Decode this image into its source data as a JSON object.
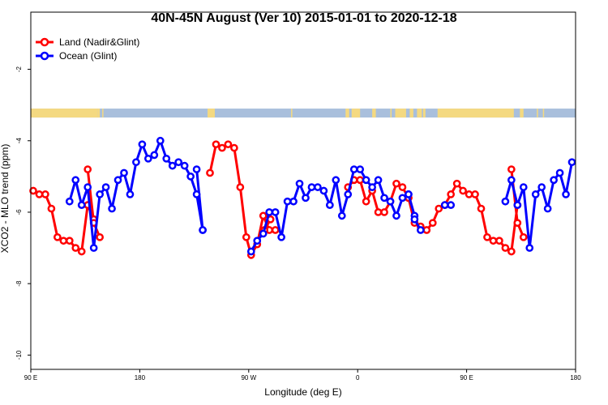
{
  "chart_data": {
    "type": "line",
    "title": "40N-45N August (Ver 10)   2015-01-01 to 2020-12-18",
    "xlabel": "Longitude (deg E)",
    "ylabel": "XCO2 - MLO trend (ppm)",
    "x_ticks": [
      {
        "value": 90,
        "label": "90 E"
      },
      {
        "value": 180,
        "label": "180"
      },
      {
        "value": 270,
        "label": "90 W"
      },
      {
        "value": 360,
        "label": "0"
      },
      {
        "value": 450,
        "label": "90 E"
      },
      {
        "value": 540,
        "label": "180"
      }
    ],
    "y_ticks": [
      -2,
      -4,
      -6,
      -8,
      -10
    ],
    "xlim": [
      90,
      540
    ],
    "ylim": [
      -10.4,
      -0.4
    ],
    "legend_position": "top-left",
    "band": {
      "y_range": [
        -3.1,
        -3.35
      ],
      "ocean_color": "#a9bfdc",
      "land_color": "#f4d981",
      "land_segments_x": [
        [
          90,
          145
        ],
        [
          145,
          147
        ],
        [
          149,
          150
        ],
        [
          236,
          242
        ],
        [
          305,
          306
        ],
        [
          350,
          353
        ],
        [
          355,
          362
        ],
        [
          372,
          375
        ],
        [
          387,
          388
        ],
        [
          391,
          400
        ],
        [
          403,
          406
        ],
        [
          409,
          413
        ],
        [
          414,
          416
        ],
        [
          426,
          489
        ],
        [
          494,
          497
        ],
        [
          508,
          509
        ],
        [
          513,
          514
        ]
      ]
    },
    "series": [
      {
        "name": "Land (Nadir&Glint)",
        "color": "#ff0000",
        "segments": [
          {
            "x": [
              92,
              97,
              102,
              107,
              112,
              117,
              122,
              127,
              132,
              137,
              142
            ],
            "y": [
              -5.4,
              -5.5,
              -5.5,
              -5.9,
              -6.7,
              -6.8,
              -6.8,
              -7.0,
              -7.1,
              -5.8,
              -6.2
            ]
          },
          {
            "x": [
              137,
              142,
              147
            ],
            "y": [
              -4.8,
              -6.3,
              -6.7
            ]
          },
          {
            "x": [
              238,
              243,
              248,
              253,
              258,
              263,
              268,
              272,
              277,
              282,
              287,
              292
            ],
            "y": [
              -4.9,
              -4.1,
              -4.2,
              -4.1,
              -4.2,
              -5.3,
              -6.7,
              -7.2,
              -6.9,
              -6.1,
              -6.5,
              -6.5
            ]
          },
          {
            "x": [
              283,
              288
            ],
            "y": [
              -6.5,
              -6.2
            ]
          },
          {
            "x": [
              352,
              357,
              362,
              367,
              372,
              377,
              382,
              387,
              392,
              397,
              402
            ],
            "y": [
              -5.3,
              -5.1,
              -5.1,
              -5.7,
              -5.4,
              -6.0,
              -6.0,
              -5.7,
              -5.2,
              -5.3,
              -5.6
            ]
          },
          {
            "x": [
              402,
              407,
              412,
              417,
              422,
              427,
              432,
              437,
              442,
              447,
              452,
              457,
              462,
              467,
              472,
              477,
              482,
              487,
              492
            ],
            "y": [
              -5.6,
              -6.3,
              -6.4,
              -6.5,
              -6.3,
              -5.9,
              -5.8,
              -5.5,
              -5.2,
              -5.4,
              -5.5,
              -5.5,
              -5.9,
              -6.7,
              -6.8,
              -6.8,
              -7.0,
              -7.1,
              -5.8
            ]
          },
          {
            "x": [
              487,
              492,
              497
            ],
            "y": [
              -4.8,
              -6.3,
              -6.7
            ]
          }
        ]
      },
      {
        "name": "Ocean (Glint)",
        "color": "#0000ff",
        "segments": [
          {
            "x": [
              122,
              127,
              132,
              137,
              142,
              147,
              152,
              157,
              162,
              167,
              172,
              177,
              182,
              187,
              192,
              197,
              202,
              207,
              212,
              217,
              222,
              227,
              232
            ],
            "y": [
              -5.7,
              -5.1,
              -5.8,
              -5.3,
              -7.0,
              -5.5,
              -5.3,
              -5.9,
              -5.1,
              -4.9,
              -5.5,
              -4.6,
              -4.1,
              -4.5,
              -4.4,
              -4.0,
              -4.5,
              -4.7,
              -4.6,
              -4.7,
              -5.0,
              -5.5,
              -6.5
            ]
          },
          {
            "x": [
              227,
              232
            ],
            "y": [
              -4.8,
              -6.5
            ]
          },
          {
            "x": [
              272,
              277,
              282,
              287,
              292,
              297,
              302,
              307,
              312,
              317,
              322,
              327,
              332,
              337,
              342,
              347,
              352,
              357,
              362,
              367,
              372,
              377,
              382,
              387,
              392,
              397,
              402
            ],
            "y": [
              -7.1,
              -6.8,
              -6.6,
              -6.0,
              -6.0,
              -6.7,
              -5.7,
              -5.7,
              -5.2,
              -5.6,
              -5.3,
              -5.3,
              -5.4,
              -5.8,
              -5.1,
              -6.1,
              -5.5,
              -4.8,
              -4.8,
              -5.1,
              -5.3,
              -5.1,
              -5.6,
              -5.7,
              -6.1,
              -5.6,
              -5.5
            ]
          },
          {
            "x": [
              402,
              407
            ],
            "y": [
              -5.5,
              -6.1
            ]
          },
          {
            "x": [
              407,
              412
            ],
            "y": [
              -6.2,
              -6.5
            ]
          },
          {
            "x": [
              432,
              437
            ],
            "y": [
              -5.8,
              -5.8
            ]
          },
          {
            "x": [
              482,
              487,
              492,
              497,
              502,
              507,
              512,
              517,
              522,
              527,
              532,
              537
            ],
            "y": [
              -5.7,
              -5.1,
              -5.8,
              -5.3,
              -7.0,
              -5.5,
              -5.3,
              -5.9,
              -5.1,
              -4.9,
              -5.5,
              -4.6
            ]
          }
        ]
      }
    ]
  }
}
